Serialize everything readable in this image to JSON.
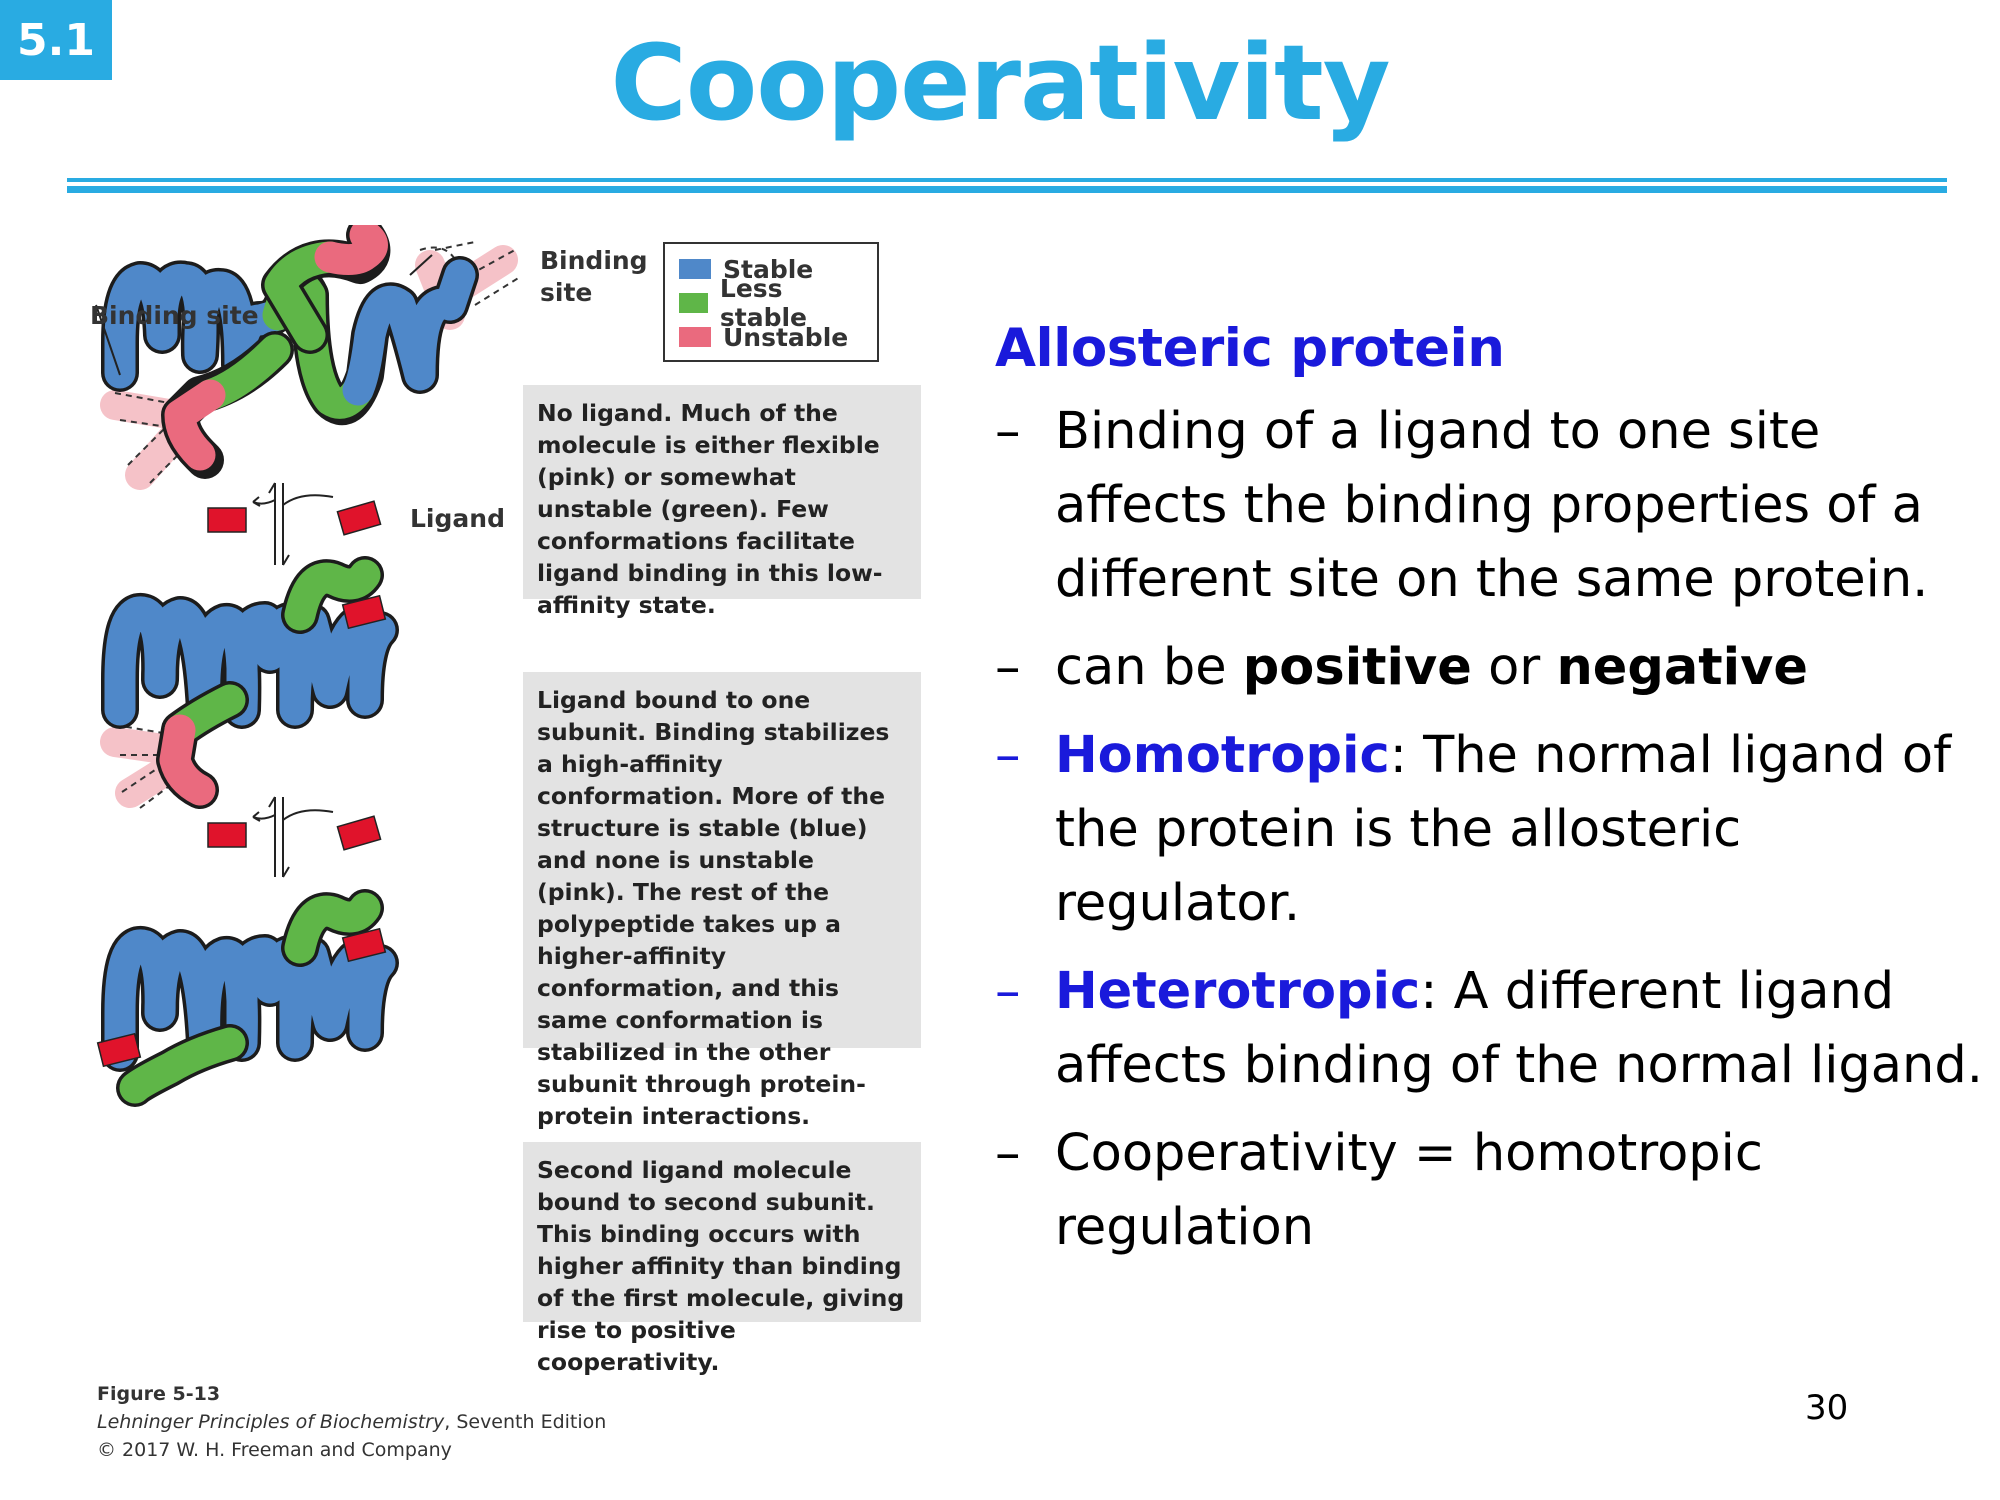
{
  "slide": {
    "number_badge": "5.1",
    "title": "Cooperativity",
    "page_number": "30"
  },
  "figure": {
    "labels": {
      "binding_site_left": "Binding site",
      "binding_site_top": "Binding site",
      "ligand": "Ligand"
    },
    "legend": [
      {
        "label": "Stable",
        "color": "#4f88c9"
      },
      {
        "label": "Less stable",
        "color": "#5fb648"
      },
      {
        "label": "Unstable",
        "color": "#ea6a7e"
      }
    ],
    "captions": [
      "No ligand. Much of the molecule is either flexible (pink) or somewhat unstable (green). Few conformations facilitate ligand binding in this low-affinity state.",
      "Ligand bound to one subunit. Binding stabilizes a high-affinity conformation. More of the structure is stable (blue) and none is unstable (pink). The rest of the polypeptide takes up a higher-affinity conformation, and this same conformation is stabilized in the other subunit through protein-protein interactions.",
      "Second ligand molecule bound to second subunit. This binding occurs with higher affinity than binding of the first molecule, giving rise to positive cooperativity."
    ],
    "credit": {
      "figure_number": "Figure 5-13",
      "book_title": "Lehninger Principles of Biochemistry",
      "edition": ", Seventh Edition",
      "copyright": "© 2017 W. H. Freeman and Company"
    }
  },
  "content": {
    "heading": "Allosteric protein",
    "bullets": {
      "b1": {
        "dash": "–",
        "text": "Binding of a ligand to one site affects the binding properties of a different site on the same protein."
      },
      "b2": {
        "dash": "–",
        "pre": "can be ",
        "bold1": "positive",
        "mid": " or ",
        "bold2": "negative"
      },
      "b3": {
        "dash": "–",
        "term": "Homotropic",
        "text": ": The normal ligand of the protein is the allosteric regulator."
      },
      "b4": {
        "dash": "–",
        "term": "Heterotropic",
        "text": ": A different ligand affects binding of the normal ligand."
      },
      "b5": {
        "dash": "–",
        "text": "Cooperativity = homotropic regulation"
      }
    }
  },
  "colors": {
    "accent": "#29abe2",
    "heading_blue": "#1a1adb",
    "stable": "#4f88c9",
    "less_stable": "#5fb648",
    "unstable": "#ea6a7e",
    "ligand": "#e0132b",
    "caption_bg": "#e3e3e3"
  }
}
